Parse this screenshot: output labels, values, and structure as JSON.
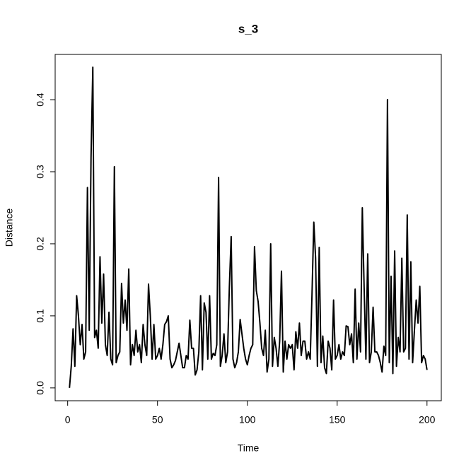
{
  "chart_data": {
    "type": "line",
    "title": "s_3",
    "x_label": "Time",
    "y_label": "Distance",
    "x": [
      1,
      2,
      3,
      4,
      5,
      6,
      7,
      8,
      9,
      10,
      11,
      12,
      13,
      14,
      15,
      16,
      17,
      18,
      19,
      20,
      21,
      22,
      23,
      24,
      25,
      26,
      27,
      28,
      29,
      30,
      31,
      32,
      33,
      34,
      35,
      36,
      37,
      38,
      39,
      40,
      41,
      42,
      43,
      44,
      45,
      46,
      47,
      48,
      49,
      50,
      51,
      52,
      53,
      54,
      55,
      56,
      57,
      58,
      59,
      60,
      61,
      62,
      63,
      64,
      65,
      66,
      67,
      68,
      69,
      70,
      71,
      72,
      73,
      74,
      75,
      76,
      77,
      78,
      79,
      80,
      81,
      82,
      83,
      84,
      85,
      86,
      87,
      88,
      89,
      90,
      91,
      92,
      93,
      94,
      95,
      96,
      97,
      98,
      99,
      100,
      101,
      102,
      103,
      104,
      105,
      106,
      107,
      108,
      109,
      110,
      111,
      112,
      113,
      114,
      115,
      116,
      117,
      118,
      119,
      120,
      121,
      122,
      123,
      124,
      125,
      126,
      127,
      128,
      129,
      130,
      131,
      132,
      133,
      134,
      135,
      136,
      137,
      138,
      139,
      140,
      141,
      142,
      143,
      144,
      145,
      146,
      147,
      148,
      149,
      150,
      151,
      152,
      153,
      154,
      155,
      156,
      157,
      158,
      159,
      160,
      161,
      162,
      163,
      164,
      165,
      166,
      167,
      168,
      169,
      170,
      171,
      172,
      173,
      174,
      175,
      176,
      177,
      178,
      179,
      180,
      181,
      182,
      183,
      184,
      185,
      186,
      187,
      188,
      189,
      190,
      191,
      192,
      193,
      194,
      195,
      196,
      197,
      198,
      199,
      200
    ],
    "values": [
      0.0,
      0.03,
      0.082,
      0.03,
      0.128,
      0.1,
      0.06,
      0.088,
      0.04,
      0.05,
      0.278,
      0.08,
      0.32,
      0.445,
      0.07,
      0.08,
      0.055,
      0.182,
      0.09,
      0.158,
      0.06,
      0.045,
      0.105,
      0.04,
      0.032,
      0.307,
      0.035,
      0.045,
      0.05,
      0.145,
      0.09,
      0.122,
      0.08,
      0.165,
      0.032,
      0.06,
      0.045,
      0.08,
      0.05,
      0.06,
      0.035,
      0.088,
      0.06,
      0.045,
      0.144,
      0.1,
      0.04,
      0.088,
      0.04,
      0.045,
      0.055,
      0.04,
      0.06,
      0.088,
      0.092,
      0.1,
      0.04,
      0.028,
      0.032,
      0.038,
      0.05,
      0.062,
      0.045,
      0.028,
      0.028,
      0.045,
      0.04,
      0.094,
      0.055,
      0.055,
      0.018,
      0.025,
      0.05,
      0.128,
      0.025,
      0.118,
      0.105,
      0.04,
      0.128,
      0.04,
      0.048,
      0.045,
      0.06,
      0.292,
      0.03,
      0.045,
      0.075,
      0.035,
      0.05,
      0.14,
      0.21,
      0.04,
      0.028,
      0.035,
      0.05,
      0.095,
      0.075,
      0.055,
      0.04,
      0.032,
      0.045,
      0.055,
      0.06,
      0.196,
      0.135,
      0.12,
      0.09,
      0.055,
      0.045,
      0.08,
      0.022,
      0.04,
      0.2,
      0.03,
      0.07,
      0.055,
      0.03,
      0.065,
      0.162,
      0.022,
      0.065,
      0.04,
      0.06,
      0.055,
      0.06,
      0.025,
      0.078,
      0.055,
      0.09,
      0.045,
      0.065,
      0.065,
      0.04,
      0.05,
      0.04,
      0.13,
      0.23,
      0.18,
      0.03,
      0.195,
      0.035,
      0.072,
      0.028,
      0.02,
      0.065,
      0.055,
      0.025,
      0.122,
      0.04,
      0.045,
      0.06,
      0.04,
      0.05,
      0.045,
      0.086,
      0.085,
      0.06,
      0.075,
      0.035,
      0.137,
      0.04,
      0.09,
      0.05,
      0.25,
      0.14,
      0.04,
      0.186,
      0.035,
      0.05,
      0.112,
      0.05,
      0.05,
      0.045,
      0.035,
      0.022,
      0.058,
      0.045,
      0.4,
      0.035,
      0.155,
      0.02,
      0.19,
      0.03,
      0.07,
      0.05,
      0.18,
      0.05,
      0.055,
      0.24,
      0.04,
      0.175,
      0.035,
      0.08,
      0.122,
      0.09,
      0.141,
      0.035,
      0.045,
      0.04,
      0.025
    ],
    "color": "#000000",
    "xlim": [
      -6.96,
      207.96
    ],
    "xticks": [
      0,
      50,
      100,
      150,
      200
    ],
    "ylim": [
      -0.0178,
      0.4628
    ],
    "yticks": [
      {
        "value": 0,
        "label": "0.0"
      },
      0.1,
      0.2,
      0.3,
      0.4
    ]
  }
}
